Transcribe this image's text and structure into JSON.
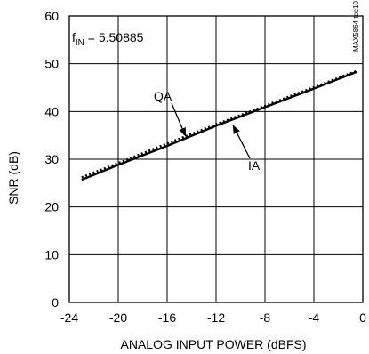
{
  "chart_data": {
    "type": "line",
    "xlabel": "ANALOG INPUT POWER (dBFS)",
    "ylabel": "SNR (dB)",
    "xlim": [
      -24,
      0
    ],
    "ylim": [
      0,
      60
    ],
    "xticks": [
      -24,
      -20,
      -16,
      -12,
      -8,
      -4,
      0
    ],
    "yticks": [
      0,
      10,
      20,
      30,
      40,
      50,
      60
    ],
    "grid": true,
    "annotation": {
      "prefix": "f",
      "subscript": "IN",
      "text": " = 5.50885"
    },
    "watermark": "MAX5864 toc10",
    "series": [
      {
        "name": "QA",
        "style": "dotted",
        "x": [
          -23,
          -20,
          -16,
          -12,
          -8,
          -4,
          -0.5
        ],
        "y": [
          26.2,
          29.2,
          33.3,
          37.3,
          41.2,
          45.1,
          48.5
        ]
      },
      {
        "name": "IA",
        "style": "solid",
        "x": [
          -23,
          -20,
          -16,
          -12,
          -8,
          -4,
          -0.5
        ],
        "y": [
          25.7,
          28.8,
          32.8,
          37.0,
          40.9,
          44.8,
          48.3
        ]
      }
    ]
  }
}
